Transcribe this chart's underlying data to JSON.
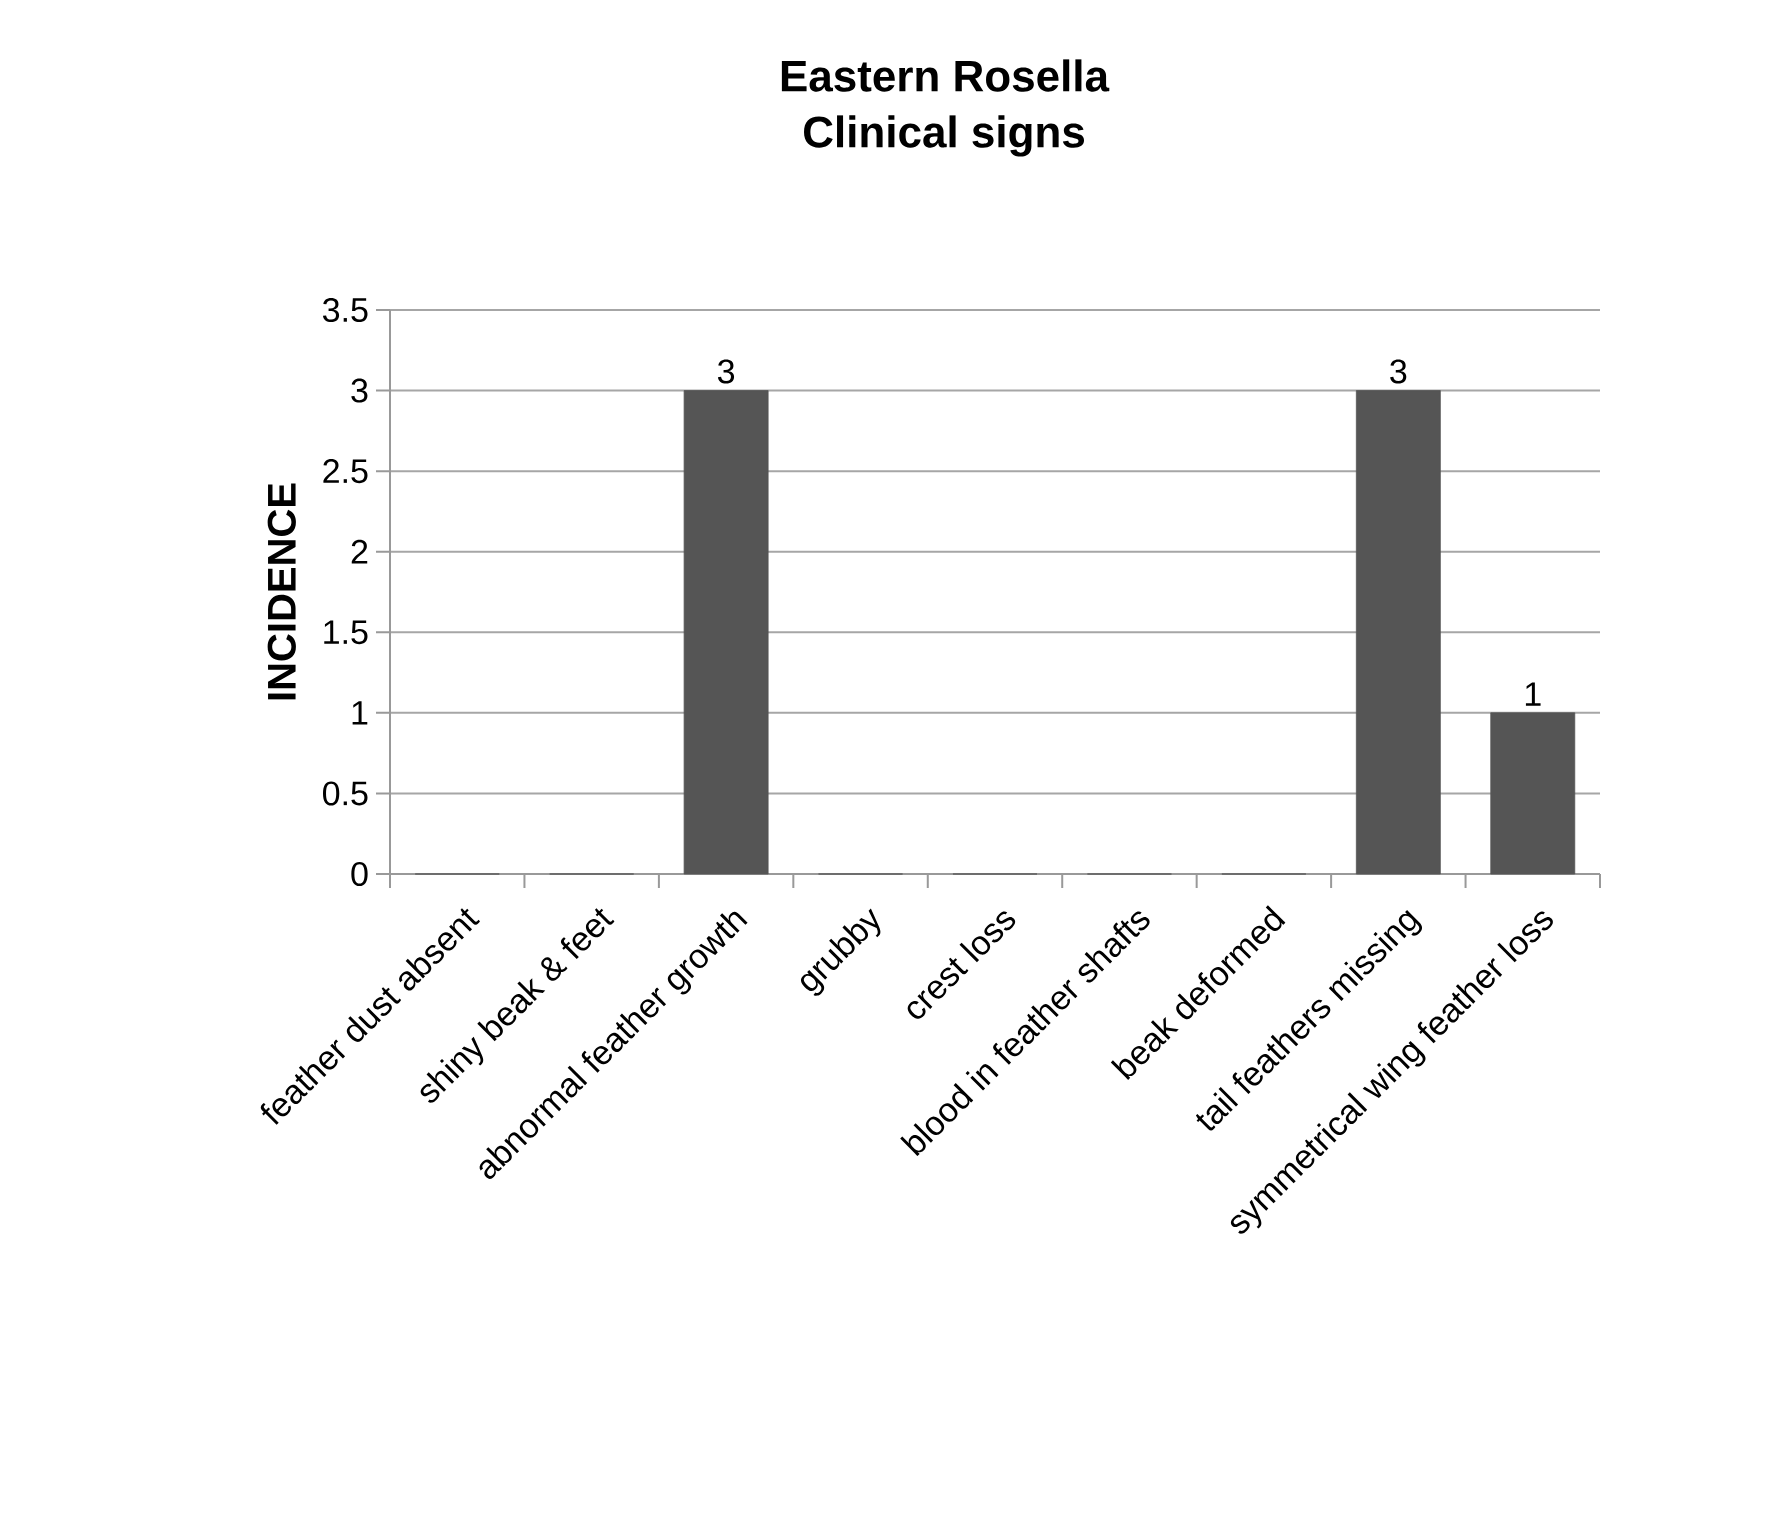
{
  "chart_data": {
    "type": "bar",
    "title": "Eastern Rosella",
    "subtitle": "Clinical signs",
    "ylabel": "INCIDENCE",
    "categories": [
      "feather dust absent",
      "shiny beak & feet",
      "abnormal feather growth",
      "grubby",
      "crest loss",
      "blood in feather shafts",
      "beak deformed",
      "tail feathers missing",
      "symmetrical wing feather loss"
    ],
    "values": [
      0,
      0,
      3,
      0,
      0,
      0,
      0,
      3,
      1
    ],
    "value_labels": [
      null,
      null,
      "3",
      null,
      null,
      null,
      null,
      "3",
      "1"
    ],
    "color": "#555555",
    "ylim": [
      0,
      3.5
    ],
    "yticks": [
      0,
      0.5,
      1,
      1.5,
      2,
      2.5,
      3,
      3.5
    ],
    "grid": "y"
  }
}
